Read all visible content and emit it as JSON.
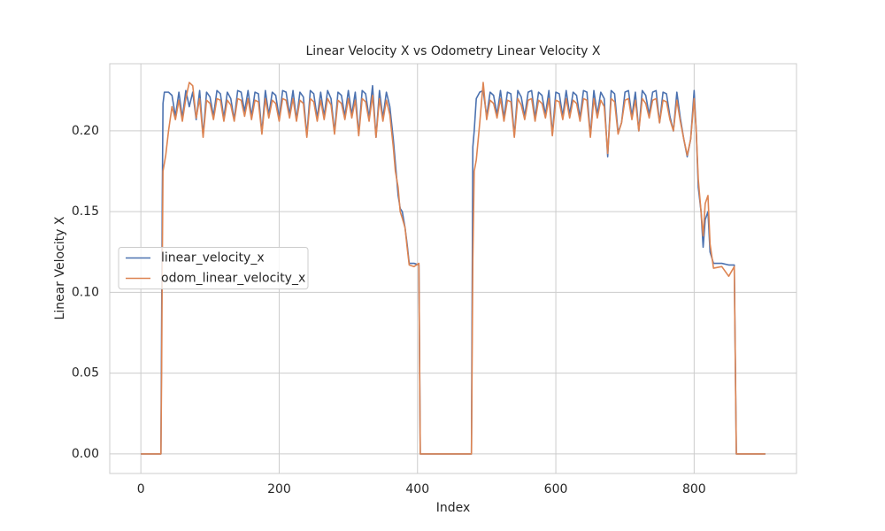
{
  "chart_data": {
    "type": "line",
    "title": "Linear Velocity X vs Odometry Linear Velocity X",
    "x_label": "Index",
    "y_label": "Linear Velocity X",
    "x": [
      0,
      10,
      20,
      29,
      30,
      31,
      32,
      34,
      36,
      40,
      45,
      50,
      55,
      60,
      65,
      70,
      75,
      80,
      85,
      90,
      95,
      100,
      105,
      110,
      115,
      120,
      125,
      130,
      135,
      140,
      145,
      150,
      155,
      160,
      165,
      170,
      175,
      180,
      185,
      190,
      195,
      200,
      205,
      210,
      215,
      220,
      225,
      230,
      235,
      240,
      245,
      250,
      255,
      260,
      265,
      270,
      275,
      280,
      285,
      290,
      295,
      300,
      305,
      310,
      315,
      320,
      325,
      330,
      335,
      340,
      345,
      350,
      355,
      360,
      365,
      368,
      372,
      375,
      378,
      382,
      385,
      388,
      395,
      402,
      404,
      440,
      478,
      480,
      482,
      485,
      490,
      495,
      500,
      505,
      510,
      515,
      520,
      525,
      530,
      535,
      540,
      545,
      550,
      555,
      560,
      565,
      570,
      575,
      580,
      585,
      590,
      595,
      600,
      605,
      610,
      615,
      620,
      625,
      630,
      635,
      640,
      645,
      650,
      655,
      660,
      665,
      670,
      675,
      680,
      685,
      690,
      695,
      700,
      705,
      710,
      715,
      720,
      725,
      730,
      735,
      740,
      745,
      750,
      755,
      760,
      765,
      770,
      775,
      780,
      785,
      790,
      795,
      800,
      803,
      806,
      810,
      813,
      816,
      820,
      823,
      828,
      840,
      850,
      858,
      861,
      903
    ],
    "series": [
      {
        "name": "linear_velocity_x",
        "color": "#4c72b0",
        "values": [
          0,
          0,
          0,
          0,
          0.08,
          0.16,
          0.217,
          0.224,
          0.224,
          0.224,
          0.222,
          0.209,
          0.224,
          0.208,
          0.225,
          0.215,
          0.224,
          0.207,
          0.225,
          0.197,
          0.224,
          0.221,
          0.209,
          0.225,
          0.223,
          0.208,
          0.224,
          0.22,
          0.207,
          0.225,
          0.224,
          0.212,
          0.225,
          0.209,
          0.224,
          0.223,
          0.199,
          0.225,
          0.21,
          0.224,
          0.222,
          0.208,
          0.225,
          0.224,
          0.21,
          0.225,
          0.207,
          0.224,
          0.221,
          0.197,
          0.225,
          0.223,
          0.208,
          0.224,
          0.209,
          0.225,
          0.22,
          0.199,
          0.224,
          0.222,
          0.209,
          0.225,
          0.21,
          0.224,
          0.198,
          0.225,
          0.223,
          0.208,
          0.228,
          0.196,
          0.225,
          0.208,
          0.224,
          0.215,
          0.195,
          0.18,
          0.16,
          0.152,
          0.15,
          0.14,
          0.13,
          0.118,
          0.118,
          0.117,
          0,
          0,
          0,
          0.19,
          0.2,
          0.22,
          0.224,
          0.225,
          0.209,
          0.224,
          0.222,
          0.21,
          0.225,
          0.208,
          0.224,
          0.223,
          0.197,
          0.225,
          0.221,
          0.209,
          0.224,
          0.225,
          0.208,
          0.224,
          0.222,
          0.21,
          0.225,
          0.198,
          0.224,
          0.223,
          0.209,
          0.225,
          0.21,
          0.224,
          0.222,
          0.208,
          0.225,
          0.224,
          0.197,
          0.225,
          0.21,
          0.224,
          0.22,
          0.184,
          0.225,
          0.223,
          0.199,
          0.205,
          0.224,
          0.225,
          0.209,
          0.224,
          0.2,
          0.225,
          0.222,
          0.21,
          0.224,
          0.225,
          0.205,
          0.224,
          0.223,
          0.209,
          0.2,
          0.224,
          0.208,
          0.195,
          0.184,
          0.195,
          0.225,
          0.2,
          0.165,
          0.15,
          0.128,
          0.145,
          0.15,
          0.125,
          0.118,
          0.118,
          0.117,
          0.117,
          0,
          0
        ]
      },
      {
        "name": "odom_linear_velocity_x",
        "color": "#dd8452",
        "values": [
          0,
          0,
          0,
          0,
          0.05,
          0.12,
          0.175,
          0.18,
          0.185,
          0.2,
          0.215,
          0.207,
          0.219,
          0.206,
          0.22,
          0.23,
          0.228,
          0.208,
          0.22,
          0.196,
          0.219,
          0.217,
          0.207,
          0.22,
          0.219,
          0.206,
          0.219,
          0.216,
          0.206,
          0.22,
          0.219,
          0.209,
          0.22,
          0.207,
          0.219,
          0.218,
          0.198,
          0.22,
          0.208,
          0.219,
          0.217,
          0.206,
          0.22,
          0.219,
          0.208,
          0.22,
          0.206,
          0.219,
          0.217,
          0.196,
          0.22,
          0.218,
          0.206,
          0.219,
          0.207,
          0.22,
          0.216,
          0.198,
          0.219,
          0.217,
          0.207,
          0.22,
          0.208,
          0.219,
          0.197,
          0.22,
          0.218,
          0.206,
          0.222,
          0.196,
          0.22,
          0.206,
          0.219,
          0.21,
          0.19,
          0.175,
          0.165,
          0.15,
          0.146,
          0.14,
          0.128,
          0.117,
          0.116,
          0.118,
          0,
          0,
          0,
          0.12,
          0.175,
          0.182,
          0.205,
          0.23,
          0.207,
          0.219,
          0.217,
          0.208,
          0.22,
          0.206,
          0.219,
          0.218,
          0.196,
          0.22,
          0.216,
          0.207,
          0.219,
          0.22,
          0.206,
          0.219,
          0.217,
          0.208,
          0.22,
          0.197,
          0.219,
          0.218,
          0.207,
          0.22,
          0.208,
          0.219,
          0.217,
          0.206,
          0.22,
          0.219,
          0.196,
          0.22,
          0.208,
          0.219,
          0.215,
          0.186,
          0.22,
          0.218,
          0.198,
          0.205,
          0.219,
          0.22,
          0.207,
          0.219,
          0.2,
          0.22,
          0.217,
          0.208,
          0.219,
          0.22,
          0.205,
          0.219,
          0.218,
          0.207,
          0.2,
          0.219,
          0.206,
          0.195,
          0.185,
          0.195,
          0.22,
          0.2,
          0.17,
          0.15,
          0.135,
          0.155,
          0.16,
          0.13,
          0.115,
          0.116,
          0.11,
          0.116,
          0,
          0
        ]
      }
    ],
    "xlim": [
      -45,
      948
    ],
    "ylim": [
      -0.0121,
      0.2416
    ],
    "xticks": [
      0,
      200,
      400,
      600,
      800
    ],
    "yticks": [
      {
        "value": 0,
        "label": "0.00"
      },
      {
        "value": 0.05,
        "label": "0.05"
      },
      {
        "value": 0.1,
        "label": "0.10"
      },
      {
        "value": 0.15,
        "label": "0.15"
      },
      {
        "value": 0.2,
        "label": "0.20"
      }
    ],
    "grid": true,
    "legend": "center left"
  }
}
